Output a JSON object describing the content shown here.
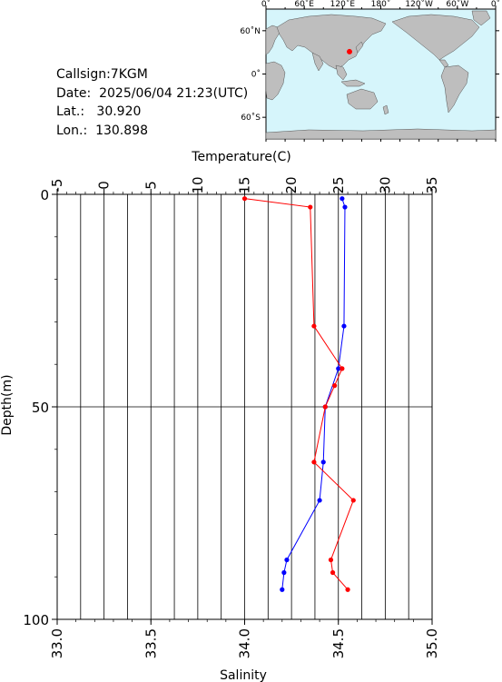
{
  "station": {
    "callsign_label": "Callsign:",
    "callsign": "7KGM",
    "date_label": "Date:",
    "date": "2025/06/04 21:23(UTC)",
    "lat_label": "Lat.:",
    "lat": "30.920",
    "lon_label": "Lon.:",
    "lon": "130.898"
  },
  "map": {
    "lon_ticks": [
      "0˚",
      "60˚E",
      "120˚E",
      "180˚",
      "120˚W",
      "60˚W",
      "0˚"
    ],
    "lat_ticks": [
      "60˚N",
      "0˚",
      "60˚S"
    ],
    "ocean_color": "#d6f5fb",
    "land_color": "#bebebe",
    "marker_color": "#ff0000",
    "marker_lat": 30.92,
    "marker_lon": 130.898
  },
  "chart_data": {
    "type": "line",
    "top_axis_label": "Temperature(C)",
    "bottom_axis_label": "Salinity",
    "y_axis_label": "Depth(m)",
    "temperature_ticks": [
      "-5",
      "0",
      "5",
      "10",
      "15",
      "20",
      "25",
      "30",
      "35"
    ],
    "salinity_ticks": [
      "33.0",
      "33.5",
      "34.0",
      "34.5",
      "35.0"
    ],
    "depth_ticks": [
      "0",
      "50",
      "100"
    ],
    "temperature_range": [
      -5,
      35
    ],
    "salinity_range": [
      33.0,
      35.0
    ],
    "depth_range": [
      0,
      100
    ],
    "grid": true,
    "series": [
      {
        "color": "#0000ff",
        "quantity": "temperature",
        "depth": [
          1,
          3,
          31,
          41,
          50,
          63,
          72,
          86,
          89,
          93
        ],
        "values": [
          25.4,
          25.7,
          25.6,
          25.0,
          23.6,
          23.4,
          23.0,
          19.5,
          19.2,
          19.0
        ]
      },
      {
        "color": "#ff0000",
        "quantity": "salinity",
        "depth": [
          1,
          3,
          31,
          41,
          45,
          50,
          63,
          72,
          86,
          89,
          93
        ],
        "values": [
          34.0,
          34.35,
          34.37,
          34.52,
          34.48,
          34.43,
          34.37,
          34.58,
          34.46,
          34.47,
          34.55
        ]
      }
    ]
  }
}
